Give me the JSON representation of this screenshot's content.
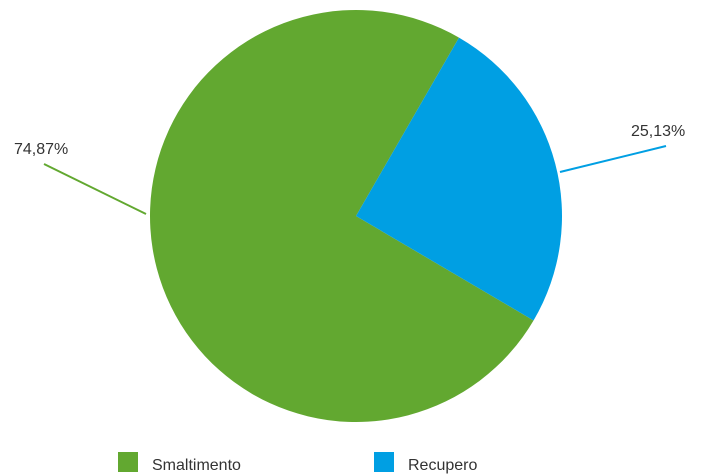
{
  "chart_data": {
    "type": "pie",
    "series": [
      {
        "name": "Smaltimento",
        "value": 74.87,
        "label": "74,87%",
        "color": "#62a830"
      },
      {
        "name": "Recupero",
        "value": 25.13,
        "label": "25,13%",
        "color": "#009fe3"
      }
    ],
    "legend": {
      "position": "bottom",
      "items": [
        "Smaltimento",
        "Recupero"
      ]
    }
  }
}
